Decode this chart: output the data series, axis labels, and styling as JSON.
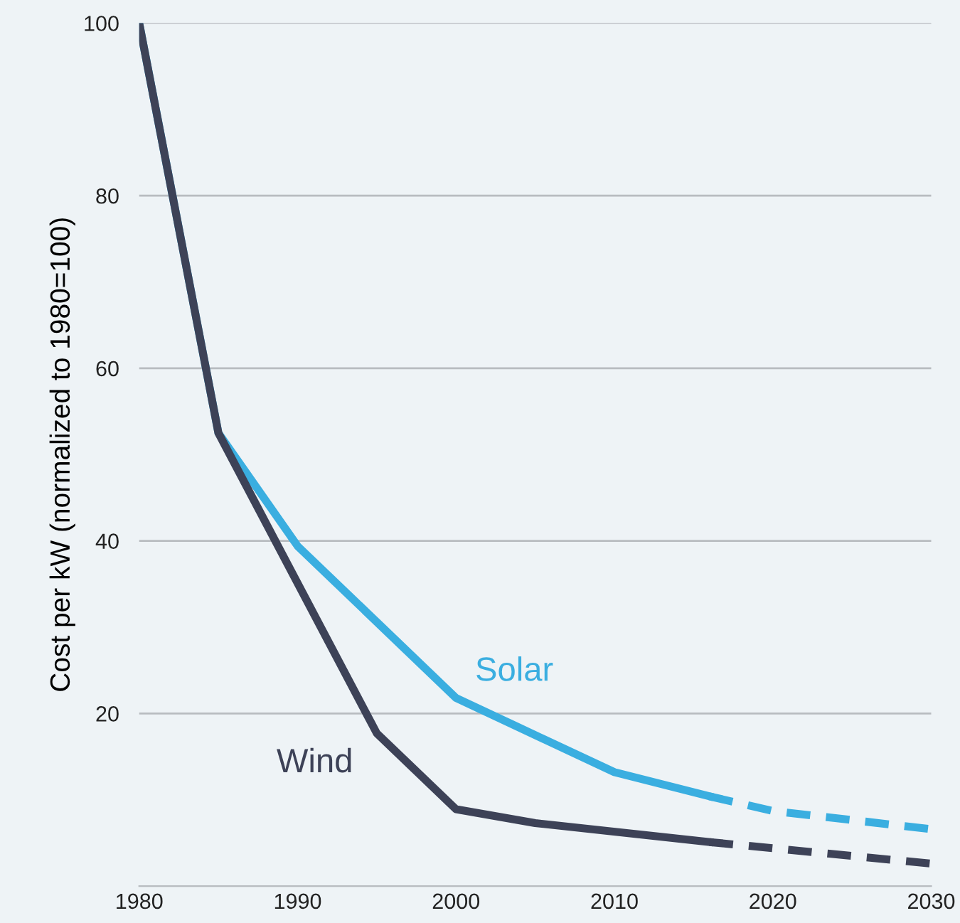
{
  "chart_data": {
    "type": "line",
    "ylabel": "Cost per kW (normalized to 1980=100)",
    "xlim": [
      1980,
      2030
    ],
    "ylim": [
      0,
      100
    ],
    "xticks": [
      1980,
      1990,
      2000,
      2010,
      2020,
      2030
    ],
    "yticks": [
      20,
      40,
      60,
      80,
      100
    ],
    "grid": "y",
    "line_style": "solid",
    "series": [
      {
        "name": "Solar",
        "color": "#3aaee0",
        "x": [
          1980,
          1985,
          1990,
          2000,
          2010,
          2016
        ],
        "values": [
          100,
          52.5,
          39.4,
          21.8,
          13.2,
          10.4
        ]
      },
      {
        "name": "Wind",
        "color": "#3d4257",
        "x": [
          1980,
          1985,
          1995,
          2000,
          2005,
          2016
        ],
        "values": [
          100,
          52.5,
          17.7,
          8.9,
          7.3,
          5.1
        ]
      },
      {
        "color": "#3aaee0",
        "line_style": "dashed",
        "x": [
          2016,
          2020,
          2030
        ],
        "values": [
          10.4,
          8.7,
          6.6
        ]
      },
      {
        "color": "#3d4257",
        "line_style": "dashed",
        "x": [
          2016,
          2030
        ],
        "values": [
          5.1,
          2.6
        ]
      }
    ]
  }
}
